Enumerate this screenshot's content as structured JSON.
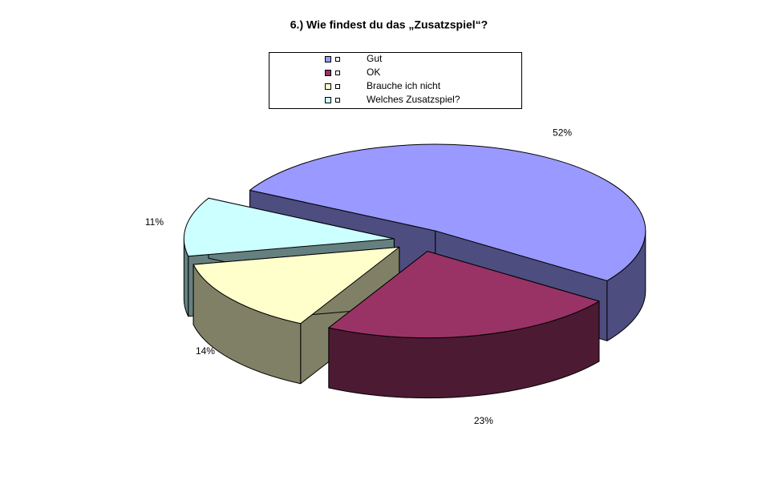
{
  "chart_data": {
    "type": "pie3d",
    "title": "6.) Wie findest du das „Zusatzspiel“?",
    "categories": [
      "Gut",
      "OK",
      "Brauche ich nicht",
      "Welches Zusatzspiel?"
    ],
    "values": [
      52,
      23,
      14,
      11
    ],
    "value_labels": [
      "52%",
      "23%",
      "14%",
      "11%"
    ],
    "colors": [
      "#9999ff",
      "#993366",
      "#ffffcc",
      "#ccffff"
    ],
    "legend": "top"
  }
}
